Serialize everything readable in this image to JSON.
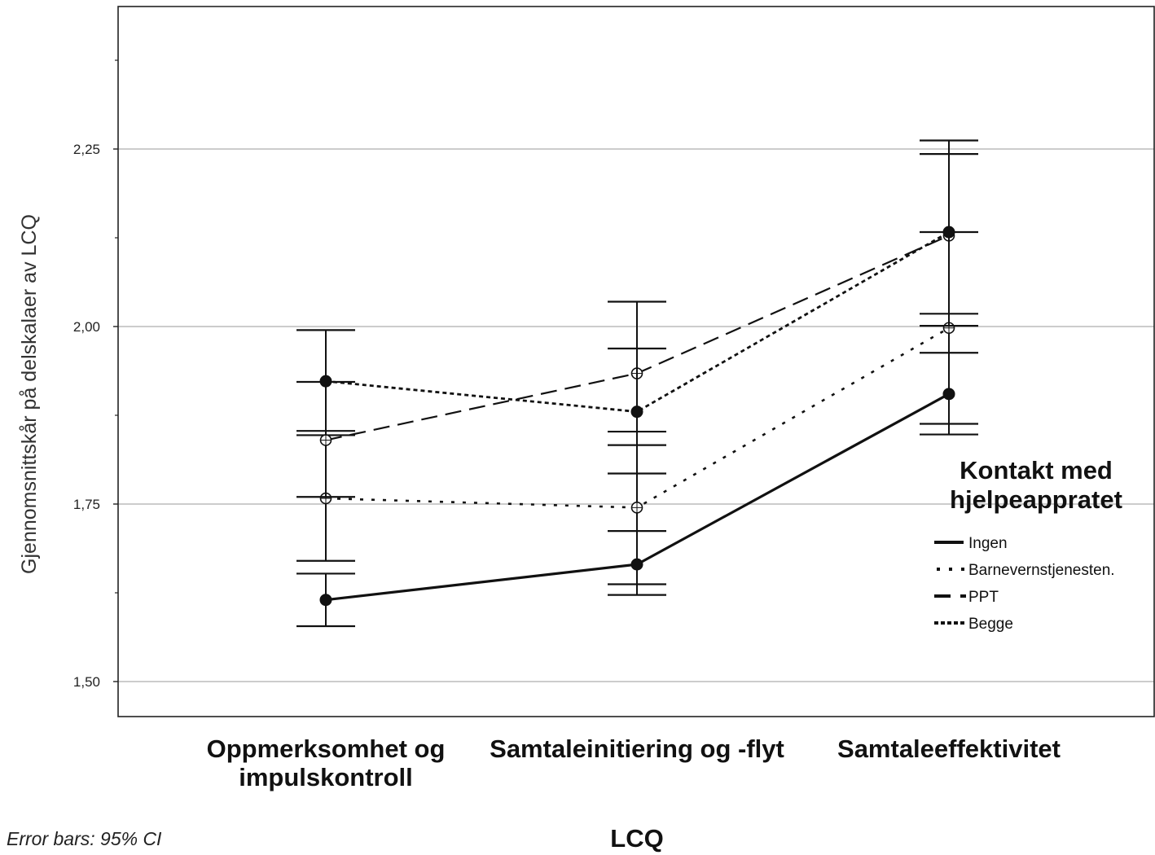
{
  "chart_data": {
    "type": "line",
    "xlabel": "LCQ",
    "ylabel": "Gjennomsnittskår på delskalaer av LCQ",
    "ylim": [
      1.45,
      2.45
    ],
    "yticks": [
      1.5,
      1.75,
      2.0,
      2.25
    ],
    "ytick_labels": [
      "1,50",
      "1,75",
      "2,00",
      "2,25"
    ],
    "grid": true,
    "categories": [
      [
        "Oppmerksomhet og",
        "impulskontroll"
      ],
      [
        "Samtaleinitiering og -flyt"
      ],
      [
        "Samtaleeffektivitet"
      ]
    ],
    "legend": {
      "title": [
        "Kontakt med",
        "hjelpeappratet"
      ],
      "placement": "right"
    },
    "footnote": "Error bars: 95% CI",
    "series": [
      {
        "name": "Ingen",
        "style": "solid",
        "marker": "filled",
        "values": [
          1.615,
          1.665,
          1.905
        ],
        "ci_low": [
          1.578,
          1.622,
          1.848
        ],
        "ci_high": [
          1.652,
          1.712,
          1.963
        ]
      },
      {
        "name": "Barnevernstjenesten.",
        "style": "sparse-dot",
        "marker": "open",
        "values": [
          1.758,
          1.745,
          1.998
        ],
        "ci_low": [
          1.67,
          1.637,
          1.863
        ],
        "ci_high": [
          1.847,
          1.852,
          2.133
        ]
      },
      {
        "name": "PPT",
        "style": "dash",
        "marker": "open",
        "values": [
          1.84,
          1.934,
          2.128
        ],
        "ci_low": [
          1.76,
          1.833,
          2.018
        ],
        "ci_high": [
          1.922,
          2.035,
          2.243
        ]
      },
      {
        "name": "Begge",
        "style": "dot",
        "marker": "filled",
        "values": [
          1.923,
          1.88,
          2.133
        ],
        "ci_low": [
          1.853,
          1.793,
          2.001
        ],
        "ci_high": [
          1.995,
          1.969,
          2.262
        ]
      }
    ]
  }
}
